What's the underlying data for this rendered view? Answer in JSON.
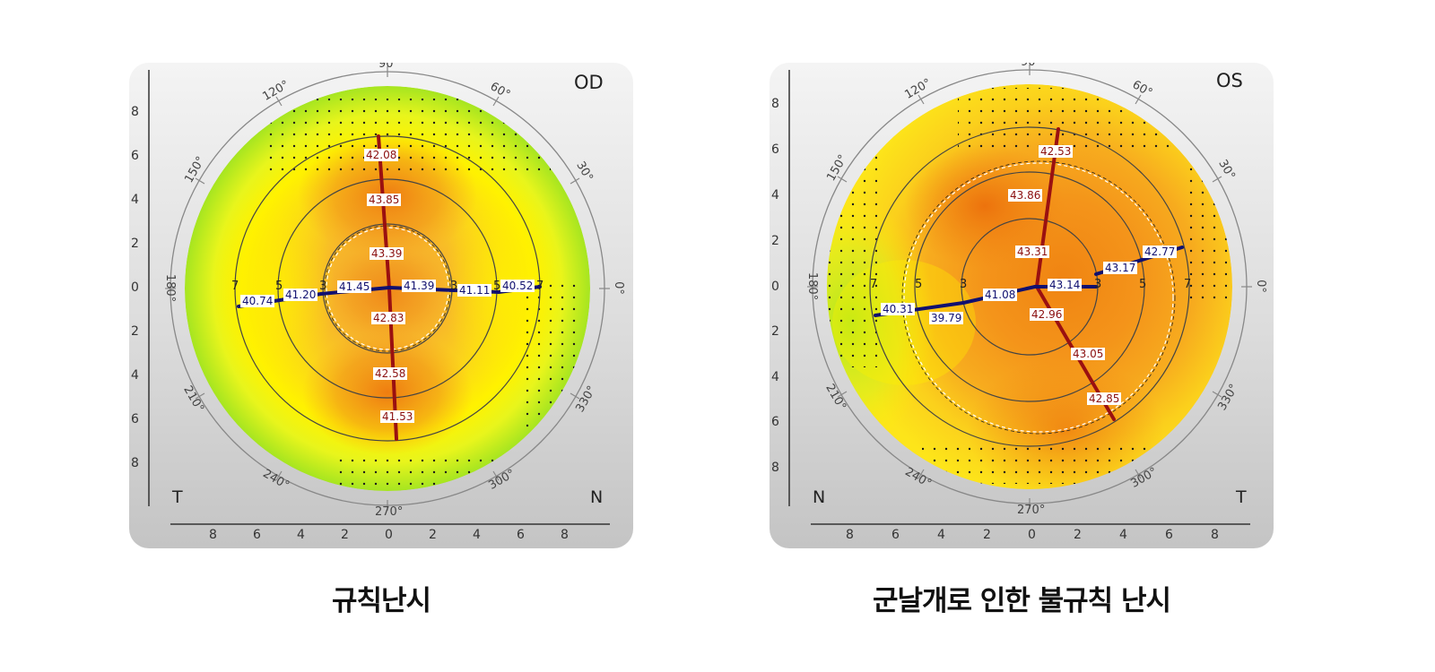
{
  "maps": [
    {
      "eye": "OD",
      "corner_left": "T",
      "corner_right": "N",
      "caption": "규칙난시",
      "top_degree": "90",
      "bottom_degree": "270°",
      "degree_labels": [
        "120°",
        "60°",
        "150°",
        "30°",
        "180°",
        "0°",
        "210°",
        "330°",
        "240°",
        "300°"
      ],
      "y_ticks": [
        "8",
        "6",
        "4",
        "2",
        "0",
        "2",
        "4",
        "6",
        "8"
      ],
      "x_ticks": [
        "8",
        "6",
        "4",
        "2",
        "0",
        "2",
        "4",
        "6",
        "8"
      ],
      "ring_labels": [
        "7",
        "5",
        "3",
        "3",
        "5",
        "7"
      ],
      "vertical_values": [
        "42.08",
        "43.85",
        "43.39",
        "42.83",
        "42.58",
        "41.53"
      ],
      "horizontal_values": [
        "40.74",
        "41.20",
        "41.45",
        "41.39",
        "41.11",
        "40.52"
      ]
    },
    {
      "eye": "OS",
      "corner_left": "N",
      "corner_right": "T",
      "caption": "군날개로 인한 불규칙 난시",
      "top_degree": "90",
      "bottom_degree": "270°",
      "degree_labels": [
        "120°",
        "60°",
        "150°",
        "30°",
        "180°",
        "0°",
        "210°",
        "330°",
        "240°",
        "300°"
      ],
      "y_ticks": [
        "8",
        "6",
        "4",
        "2",
        "0",
        "2",
        "4",
        "6",
        "8"
      ],
      "x_ticks": [
        "8",
        "6",
        "4",
        "2",
        "0",
        "2",
        "4",
        "6",
        "8"
      ],
      "ring_labels": [
        "7",
        "5",
        "3",
        "3",
        "5",
        "7"
      ],
      "vertical_values": [
        "42.53",
        "43.86",
        "43.31",
        "42.96",
        "43.05",
        "42.85"
      ],
      "horizontal_values": [
        "40.31",
        "39.79",
        "41.08",
        "43.14",
        "43.17",
        "42.77"
      ]
    }
  ],
  "colors": {
    "warm_center": "#f07a10",
    "orange": "#f59a1a",
    "yellow": "#ffff00",
    "green_edge": "#a8e61e",
    "meridian_red": "#9a1010",
    "meridian_blue": "#101070"
  }
}
